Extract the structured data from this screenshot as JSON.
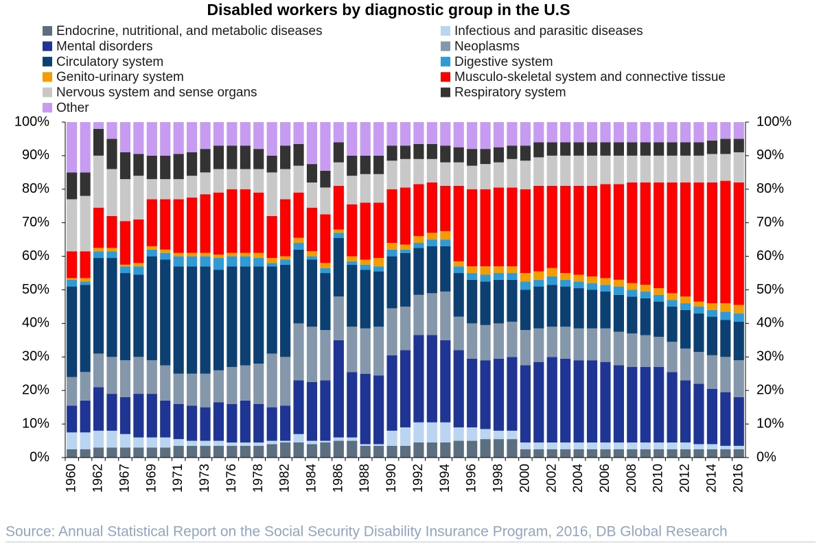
{
  "chart_data": {
    "type": "stacked_bar",
    "title": "Disabled workers by diagnostic group in the U.S",
    "source": "Source: Annual Statistical Report on the Social Security Disability Insurance Program, 2016, DB Global Research",
    "categories": [
      "1960",
      null,
      "1962",
      null,
      "1967",
      null,
      "1969",
      null,
      "1971",
      null,
      "1973",
      null,
      "1976",
      null,
      "1978",
      null,
      "1982",
      null,
      "1984",
      null,
      "1986",
      null,
      "1988",
      null,
      "1990",
      null,
      "1992",
      null,
      "1994",
      null,
      "1996",
      null,
      "1998",
      null,
      "2000",
      null,
      "2002",
      null,
      "2004",
      null,
      "2006",
      null,
      "2008",
      null,
      "2010",
      null,
      "2012",
      null,
      "2014",
      null,
      "2016"
    ],
    "series": [
      {
        "name": "Endocrine, nutritional, and metabolic diseases",
        "color": "#5b6f80",
        "values": [
          2.5,
          2.5,
          3,
          3,
          3,
          3,
          3,
          3,
          3.5,
          3.5,
          3.5,
          3.5,
          3.5,
          3.5,
          3.5,
          4,
          4.5,
          4.5,
          4,
          4.5,
          5,
          5,
          3.5,
          3.5,
          3.5,
          3.5,
          4.5,
          4.5,
          4.5,
          5,
          5,
          5.5,
          5.5,
          5.5,
          2.5,
          2.5,
          2.5,
          2.5,
          2.5,
          2.5,
          2.5,
          2.5,
          2.5,
          2.5,
          2.5,
          2.5,
          2.5,
          2.5,
          2.5,
          2.5,
          2.5
        ]
      },
      {
        "name": "Infectious and parasitic diseases",
        "color": "#b9d5f2",
        "values": [
          5,
          5,
          5,
          5,
          4,
          3,
          3,
          3,
          2,
          1.5,
          1.5,
          1.5,
          1,
          1,
          1,
          1,
          0.5,
          2.5,
          1,
          0.5,
          1,
          1,
          0.5,
          0.5,
          4.5,
          5.5,
          6,
          6,
          6,
          4,
          4,
          3,
          2.5,
          2.5,
          2,
          2,
          2,
          2,
          2,
          2,
          2,
          2,
          2,
          2,
          2,
          2,
          2,
          1.5,
          1.5,
          1,
          1
        ]
      },
      {
        "name": "Mental disorders",
        "color": "#1f3596",
        "values": [
          8,
          9.5,
          13,
          11,
          11,
          13,
          13,
          11,
          10.5,
          10.5,
          10,
          11.5,
          11.5,
          12.5,
          11.5,
          10,
          10.5,
          16,
          17.5,
          18,
          29,
          19.5,
          21,
          20.5,
          22.5,
          23,
          26,
          26,
          24.5,
          23,
          20.5,
          20.5,
          21.5,
          22,
          23,
          24,
          25.5,
          25,
          24.5,
          24.5,
          24,
          23,
          22.5,
          22.5,
          22.5,
          21,
          18.5,
          18,
          16.5,
          16,
          14.5
        ]
      },
      {
        "name": "Neoplasms",
        "color": "#8597aa",
        "values": [
          8.5,
          8.5,
          10,
          11,
          11,
          11,
          10,
          10.5,
          9,
          9.5,
          10,
          9.5,
          11,
          10.5,
          12,
          16,
          14.5,
          17,
          16.5,
          15,
          13,
          13.5,
          13.5,
          14.5,
          14,
          13,
          12,
          12.5,
          14.5,
          10,
          10.5,
          10.5,
          10.5,
          10.5,
          10.5,
          10,
          9,
          9.5,
          9.5,
          9.5,
          10,
          10,
          10,
          9.5,
          9,
          9,
          9.5,
          9.5,
          10,
          10.5,
          11
        ]
      },
      {
        "name": "Circulatory system",
        "color": "#0c3f72",
        "values": [
          27,
          26,
          28.5,
          29.5,
          26,
          24.5,
          31,
          31.5,
          32,
          32,
          32,
          30,
          30,
          29.5,
          29,
          26,
          27.5,
          22,
          20,
          17,
          17.5,
          18.5,
          17.5,
          16.5,
          15.5,
          16,
          14,
          14,
          13.5,
          13,
          13,
          13,
          13,
          12.5,
          12,
          12.5,
          12.5,
          12,
          12,
          11.5,
          11,
          11,
          11,
          11,
          10.5,
          10.5,
          11.5,
          11.5,
          11.5,
          11,
          11.5
        ]
      },
      {
        "name": "Digestive system",
        "color": "#2e9ad6",
        "values": [
          2,
          1,
          2,
          2,
          2,
          2.5,
          2,
          2,
          3,
          3,
          3,
          3.5,
          3,
          3,
          2.5,
          1,
          1.5,
          2,
          1,
          1.5,
          1.5,
          1,
          1.5,
          1.5,
          2,
          1,
          1.5,
          2,
          2,
          2,
          2,
          2,
          2,
          2,
          2.5,
          2,
          2.5,
          2,
          2,
          2,
          2,
          2.5,
          2,
          2,
          2,
          2,
          2,
          2,
          2,
          2.5,
          2.5
        ]
      },
      {
        "name": "Genito-urinary system",
        "color": "#f59c00",
        "values": [
          0.5,
          1,
          1,
          1,
          0.5,
          1,
          1,
          1,
          1,
          1,
          1,
          1,
          1,
          1,
          1.5,
          1.5,
          1,
          1.5,
          1.5,
          1.5,
          1,
          1.5,
          1.5,
          2.5,
          2,
          1.5,
          2,
          2,
          2.5,
          1.5,
          2,
          2.5,
          2,
          2,
          2.5,
          2.5,
          2.5,
          2,
          2,
          2,
          2,
          2,
          2,
          2,
          2,
          2,
          2,
          1.5,
          2,
          2.5,
          2.5
        ]
      },
      {
        "name": "Musculo-skeletal system and connective tissue",
        "color": "#fe0000",
        "values": [
          8,
          8,
          12,
          9.5,
          13,
          13,
          14,
          15,
          16,
          16.5,
          17.5,
          18.5,
          19,
          19,
          18,
          12.5,
          17,
          13.5,
          13,
          14.5,
          13,
          15.5,
          17,
          16.5,
          16,
          17,
          15.5,
          15,
          13.5,
          22.5,
          23,
          23,
          23.5,
          23.5,
          25,
          25.5,
          24.5,
          26,
          26.5,
          27,
          28,
          28.5,
          30,
          30.5,
          31.5,
          33,
          34,
          35.5,
          36,
          36.5,
          36.5
        ]
      },
      {
        "name": "Nervous system and sense organs",
        "color": "#c8c8c8",
        "values": [
          15.5,
          16.5,
          15.5,
          14,
          12.5,
          13,
          6,
          6,
          6,
          6.5,
          6.5,
          7,
          6,
          6,
          7,
          13,
          9,
          8,
          7.5,
          8,
          7,
          8.5,
          8.5,
          8.5,
          8.5,
          8.5,
          7.5,
          7,
          7,
          7,
          7,
          7.5,
          7.5,
          8.5,
          8.5,
          8.5,
          9,
          9,
          9,
          9,
          8.5,
          8.5,
          8,
          8,
          8,
          8,
          8,
          8,
          8.5,
          8,
          9
        ]
      },
      {
        "name": "Respiratory system",
        "color": "#333333",
        "values": [
          8,
          7,
          8,
          9,
          8,
          6.5,
          7,
          7,
          7.5,
          7,
          7,
          7,
          7,
          7,
          6,
          5,
          7,
          6.5,
          5.5,
          5,
          6,
          6,
          5.5,
          5.5,
          4.5,
          4,
          4.5,
          4.5,
          5,
          4.5,
          5,
          4.5,
          4.5,
          4,
          4.5,
          4.5,
          4,
          4,
          4,
          4,
          4,
          4,
          4,
          4,
          4,
          4,
          4,
          4,
          4,
          4.5,
          4
        ]
      },
      {
        "name": "Other",
        "color": "#c89bf3",
        "values": [
          15,
          15,
          2,
          5,
          9,
          9.5,
          10,
          10,
          9.5,
          9,
          8,
          7,
          7,
          7,
          8,
          10,
          7,
          6.5,
          12.5,
          14.5,
          6,
          10,
          10,
          10,
          7,
          7,
          6.5,
          6.5,
          7,
          7.5,
          8,
          8,
          7.5,
          7,
          7,
          6,
          6,
          6,
          6,
          6,
          6,
          6,
          6,
          6,
          6,
          6,
          6,
          6,
          5.5,
          5,
          5
        ]
      }
    ],
    "ylim": [
      0,
      100
    ],
    "yticks": [
      {
        "value": 0,
        "label": "0%"
      },
      {
        "value": 10,
        "label": "10%"
      },
      {
        "value": 20,
        "label": "20%"
      },
      {
        "value": 30,
        "label": "30%"
      },
      {
        "value": 40,
        "label": "40%"
      },
      {
        "value": 50,
        "label": "50%"
      },
      {
        "value": 60,
        "label": "60%"
      },
      {
        "value": 70,
        "label": "70%"
      },
      {
        "value": 80,
        "label": "80%"
      },
      {
        "value": 90,
        "label": "90%"
      },
      {
        "value": 100,
        "label": "100%"
      }
    ],
    "y2lim": [
      0,
      100
    ],
    "y2ticks": [
      {
        "value": 0,
        "label": "0%"
      },
      {
        "value": 10,
        "label": "10%"
      },
      {
        "value": 20,
        "label": "20%"
      },
      {
        "value": 30,
        "label": "30%"
      },
      {
        "value": 40,
        "label": "40%"
      },
      {
        "value": 50,
        "label": "50%"
      },
      {
        "value": 60,
        "label": "60%"
      },
      {
        "value": 70,
        "label": "70%"
      },
      {
        "value": 80,
        "label": "80%"
      },
      {
        "value": 90,
        "label": "90%"
      },
      {
        "value": 100,
        "label": "100%"
      }
    ],
    "grid": false
  }
}
